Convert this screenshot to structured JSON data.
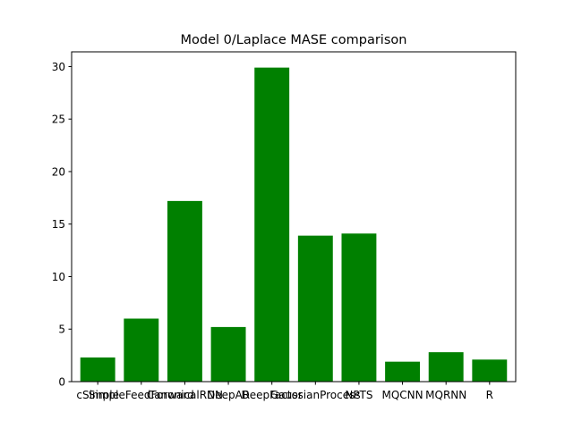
{
  "chart_data": {
    "type": "bar",
    "title": "Model 0/Laplace MASE comparison",
    "xlabel": "",
    "ylabel": "",
    "categories": [
      "cSimple",
      "SimpleFeedForward",
      "CanonicalRNN",
      "DeepAR",
      "DeepFactor",
      "GaussianProcess",
      "NPTS",
      "MQCNN",
      "MQRNN",
      "R"
    ],
    "values": [
      2.3,
      6.0,
      17.2,
      5.2,
      29.9,
      13.9,
      14.1,
      1.9,
      2.8,
      2.1
    ],
    "ylim": [
      0,
      31.4
    ],
    "yticks": [
      0,
      5,
      10,
      15,
      20,
      25,
      30
    ],
    "bar_color": "#008000",
    "grid": false
  }
}
